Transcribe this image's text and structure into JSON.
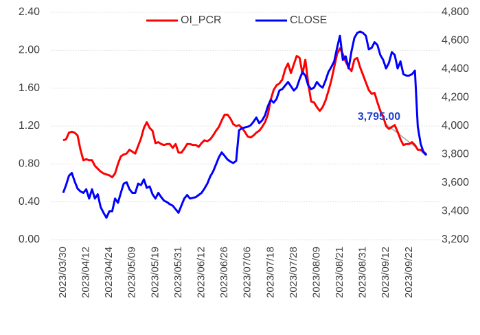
{
  "chart_data": {
    "type": "line",
    "annotation": "3,795.00",
    "categories": [
      "2023/03/30",
      null,
      null,
      null,
      null,
      null,
      null,
      null,
      "2023/04/12",
      null,
      null,
      null,
      null,
      null,
      null,
      null,
      "2023/04/24",
      null,
      null,
      null,
      null,
      null,
      null,
      null,
      "2023/05/09",
      null,
      null,
      null,
      null,
      null,
      null,
      null,
      "2023/05/19",
      null,
      null,
      null,
      null,
      null,
      null,
      null,
      "2023/05/31",
      null,
      null,
      null,
      null,
      null,
      null,
      null,
      "2023/06/12",
      null,
      null,
      null,
      null,
      null,
      null,
      null,
      "2023/06/26",
      null,
      null,
      null,
      null,
      null,
      null,
      null,
      "2023/07/06",
      null,
      null,
      null,
      null,
      null,
      null,
      null,
      "2023/07/18",
      null,
      null,
      null,
      null,
      null,
      null,
      null,
      "2023/07/28",
      null,
      null,
      null,
      null,
      null,
      null,
      null,
      "2023/08/09",
      null,
      null,
      null,
      null,
      null,
      null,
      null,
      "2023/08/21",
      null,
      null,
      null,
      null,
      null,
      null,
      null,
      "2023/08/31",
      null,
      null,
      null,
      null,
      null,
      null,
      null,
      "2023/09/12",
      null,
      null,
      null,
      null,
      null,
      null,
      null,
      "2023/09/22",
      null,
      null,
      null,
      null,
      null,
      null
    ],
    "series": [
      {
        "name": "OI_PCR",
        "color": "#ff0000",
        "values": [
          1.05,
          1.06,
          1.13,
          1.14,
          1.13,
          1.1,
          0.95,
          0.84,
          0.85,
          0.84,
          0.84,
          0.78,
          0.75,
          0.72,
          0.7,
          0.69,
          0.68,
          0.66,
          0.7,
          0.8,
          0.88,
          0.9,
          0.91,
          0.95,
          0.93,
          0.91,
          0.99,
          1.07,
          1.18,
          1.24,
          1.18,
          1.15,
          1.02,
          1.03,
          1.01,
          1.0,
          1.01,
          1.01,
          0.97,
          1.01,
          0.92,
          0.92,
          0.96,
          1.01,
          1.01,
          1.0,
          1.0,
          0.98,
          1.02,
          1.05,
          1.04,
          1.06,
          1.1,
          1.15,
          1.19,
          1.26,
          1.32,
          1.32,
          1.28,
          1.22,
          1.2,
          1.21,
          1.18,
          1.14,
          1.09,
          1.08,
          1.1,
          1.13,
          1.15,
          1.19,
          1.24,
          1.32,
          1.48,
          1.58,
          1.63,
          1.65,
          1.69,
          1.8,
          1.86,
          1.76,
          1.85,
          1.94,
          1.92,
          1.75,
          1.9,
          1.65,
          1.46,
          1.45,
          1.4,
          1.36,
          1.4,
          1.47,
          1.57,
          1.68,
          1.82,
          1.96,
          2.02,
          1.96,
          1.88,
          1.82,
          1.78,
          1.9,
          1.92,
          1.82,
          1.74,
          1.66,
          1.58,
          1.54,
          1.55,
          1.45,
          1.36,
          1.3,
          1.2,
          1.17,
          1.19,
          1.21,
          1.14,
          1.06,
          1.0,
          1.01,
          1.01,
          1.03,
          1.0,
          0.95,
          0.95,
          0.93,
          0.9
        ]
      },
      {
        "name": "CLOSE",
        "color": "#0000ff",
        "axis": "y2",
        "values": [
          3530,
          3585,
          3650,
          3670,
          3610,
          3560,
          3540,
          3530,
          3555,
          3490,
          3555,
          3490,
          3520,
          3430,
          3390,
          3355,
          3400,
          3400,
          3490,
          3460,
          3530,
          3595,
          3605,
          3555,
          3530,
          3530,
          3595,
          3585,
          3625,
          3565,
          3575,
          3520,
          3490,
          3530,
          3500,
          3475,
          3465,
          3450,
          3440,
          3415,
          3390,
          3440,
          3490,
          3515,
          3490,
          3495,
          3500,
          3515,
          3530,
          3560,
          3595,
          3645,
          3680,
          3730,
          3780,
          3815,
          3790,
          3765,
          3750,
          3740,
          3755,
          3970,
          3985,
          3990,
          3995,
          4005,
          4030,
          4060,
          4020,
          4040,
          4075,
          4140,
          4185,
          4165,
          4190,
          4250,
          4260,
          4285,
          4310,
          4280,
          4250,
          4270,
          4330,
          4380,
          4355,
          4285,
          4260,
          4270,
          4310,
          4285,
          4270,
          4320,
          4380,
          4415,
          4455,
          4550,
          4635,
          4465,
          4490,
          4405,
          4525,
          4620,
          4655,
          4665,
          4655,
          4635,
          4540,
          4550,
          4590,
          4570,
          4500,
          4465,
          4405,
          4445,
          4520,
          4500,
          4405,
          4455,
          4365,
          4355,
          4355,
          4365,
          4390,
          3995,
          3875,
          3815,
          3795
        ]
      }
    ],
    "ylim": [
      0,
      2.4
    ],
    "yticks": [
      {
        "value": 0,
        "label": "0.00"
      },
      {
        "value": 0.4,
        "label": "0.40"
      },
      {
        "value": 0.8,
        "label": "0.80"
      },
      {
        "value": 1.2,
        "label": "1.20"
      },
      {
        "value": 1.6,
        "label": "1.60"
      },
      {
        "value": 2.0,
        "label": "2.00"
      },
      {
        "value": 2.4,
        "label": "2.40"
      }
    ],
    "y2lim": [
      3200,
      4800
    ],
    "y2ticks": [
      {
        "value": 3200,
        "label": "3,200"
      },
      {
        "value": 3400,
        "label": "3,400"
      },
      {
        "value": 3600,
        "label": "3,600"
      },
      {
        "value": 3800,
        "label": "3,800"
      },
      {
        "value": 4000,
        "label": "4,000"
      },
      {
        "value": 4200,
        "label": "4,200"
      },
      {
        "value": 4400,
        "label": "4,400"
      },
      {
        "value": 4600,
        "label": "4,600"
      },
      {
        "value": 4800,
        "label": "4,800"
      }
    ],
    "grid": true,
    "legend": "top"
  }
}
